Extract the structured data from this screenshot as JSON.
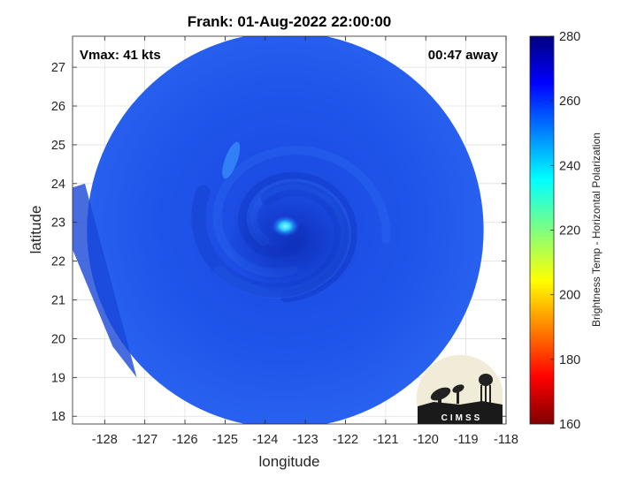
{
  "title": "Frank: 01-Aug-2022 22:00:00",
  "vmax_label": "Vmax: 41 kts",
  "time_label": "00:47 away",
  "xlabel": "longitude",
  "ylabel": "latitude",
  "colorbar_label": "Brightness Temp - Horizontal Polarization",
  "logo_text": "CIMSS",
  "x_ticks": [
    "-128",
    "-127",
    "-126",
    "-125",
    "-124",
    "-123",
    "-122",
    "-121",
    "-120",
    "-119",
    "-118"
  ],
  "y_ticks": [
    "18",
    "19",
    "20",
    "21",
    "22",
    "23",
    "24",
    "25",
    "26",
    "27"
  ],
  "colorbar_ticks": [
    "160",
    "180",
    "200",
    "220",
    "240",
    "260",
    "280"
  ],
  "map_data": {
    "xlim": [
      -128.8,
      -118
    ],
    "ylim": [
      17.8,
      27.8
    ],
    "clim": [
      160,
      280
    ],
    "swath_center": {
      "lon": -123.5,
      "lat": 22.8
    },
    "eye": {
      "lon": -123.5,
      "lat": 22.9
    },
    "grid": true,
    "colormap": "jet"
  },
  "colors": {
    "background_temp": "#1a4adf",
    "eye_bright": "#36e7ff",
    "swath_fill": "#1d52e8"
  }
}
